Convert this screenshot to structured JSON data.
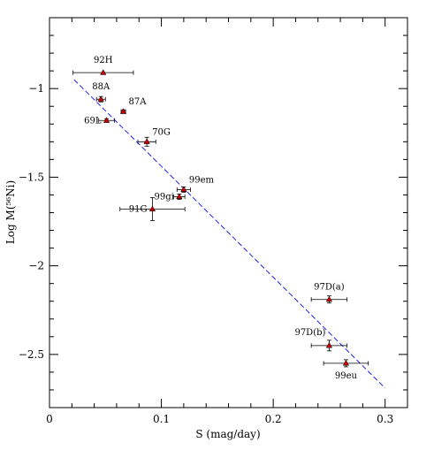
{
  "chart_data": {
    "type": "scatter",
    "title": "",
    "xlabel": "S (mag/day)",
    "ylabel": "Log M(⁵⁶Ni)",
    "xlim": [
      0,
      0.32
    ],
    "ylim": [
      -2.8,
      -0.6
    ],
    "x_ticks": [
      0,
      0.1,
      0.2,
      0.3
    ],
    "x_tick_labels": [
      "0",
      "0.1",
      "0.2",
      "0.3"
    ],
    "y_ticks": [
      -1,
      -1.5,
      -2,
      -2.5
    ],
    "y_tick_labels": [
      "−1",
      "−1.5",
      "−2",
      "−2.5"
    ],
    "grid": false,
    "marker_color": "#cc0000",
    "fit_line_color": "#2222ee",
    "series": [
      {
        "points": [
          {
            "label": "92H",
            "x": 0.048,
            "y": -0.91,
            "xerr": 0.027,
            "yerr": 0.0,
            "label_pos": "above"
          },
          {
            "label": "88A",
            "x": 0.046,
            "y": -1.06,
            "xerr": 0.004,
            "yerr": 0.015,
            "label_pos": "above"
          },
          {
            "label": "87A",
            "x": 0.066,
            "y": -1.13,
            "xerr": 0.002,
            "yerr": 0.01,
            "label_pos": "above-right"
          },
          {
            "label": "69L",
            "x": 0.051,
            "y": -1.18,
            "xerr": 0.007,
            "yerr": 0.01,
            "label_pos": "left"
          },
          {
            "label": "70G",
            "x": 0.087,
            "y": -1.3,
            "xerr": 0.008,
            "yerr": 0.025,
            "label_pos": "above-right"
          },
          {
            "label": "99em",
            "x": 0.12,
            "y": -1.57,
            "xerr": 0.006,
            "yerr": 0.015,
            "label_pos": "above-right"
          },
          {
            "label": "99gi",
            "x": 0.116,
            "y": -1.61,
            "xerr": 0.005,
            "yerr": 0.015,
            "label_pos": "left"
          },
          {
            "label": "91G",
            "x": 0.092,
            "y": -1.68,
            "xerr": 0.029,
            "yerr": 0.065,
            "label_pos": "left"
          },
          {
            "label": "97D(a)",
            "x": 0.25,
            "y": -2.19,
            "xerr": 0.016,
            "yerr": 0.02,
            "label_pos": "above"
          },
          {
            "label": "97D(b)",
            "x": 0.25,
            "y": -2.45,
            "xerr": 0.016,
            "yerr": 0.03,
            "label_pos": "left-above"
          },
          {
            "label": "99eu",
            "x": 0.265,
            "y": -2.55,
            "xerr": 0.02,
            "yerr": 0.02,
            "label_pos": "below"
          }
        ]
      }
    ],
    "fit_line": {
      "x": [
        0.022,
        0.3
      ],
      "y": [
        -0.95,
        -2.69
      ]
    }
  }
}
